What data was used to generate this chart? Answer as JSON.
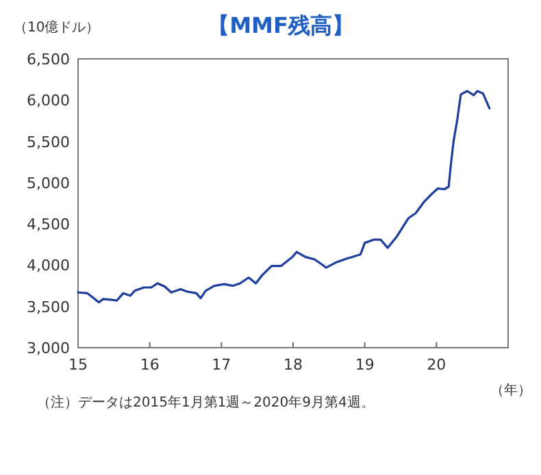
{
  "chart_data": {
    "type": "line",
    "title": "【MMF残高】",
    "ylabel": "（10億ドル）",
    "xlabel": "（年）",
    "x": [
      15.0,
      15.13,
      15.22,
      15.29,
      15.35,
      15.48,
      15.54,
      15.63,
      15.73,
      15.79,
      15.92,
      16.02,
      16.11,
      16.21,
      16.3,
      16.43,
      16.52,
      16.65,
      16.71,
      16.78,
      16.9,
      17.04,
      17.16,
      17.26,
      17.38,
      17.48,
      17.57,
      17.7,
      17.83,
      17.99,
      18.05,
      18.17,
      18.3,
      18.4,
      18.46,
      18.59,
      18.75,
      18.94,
      19.0,
      19.13,
      19.22,
      19.32,
      19.45,
      19.61,
      19.71,
      19.83,
      19.92,
      20.02,
      20.11,
      20.17,
      20.2,
      20.24,
      20.29,
      20.34,
      20.43,
      20.52,
      20.57,
      20.65,
      20.74
    ],
    "values": [
      3670,
      3660,
      3600,
      3550,
      3590,
      3580,
      3570,
      3660,
      3630,
      3690,
      3730,
      3730,
      3780,
      3740,
      3670,
      3710,
      3680,
      3660,
      3600,
      3690,
      3750,
      3770,
      3750,
      3780,
      3850,
      3780,
      3880,
      3990,
      3990,
      4100,
      4160,
      4100,
      4070,
      4010,
      3970,
      4030,
      4080,
      4130,
      4270,
      4310,
      4310,
      4210,
      4350,
      4570,
      4630,
      4770,
      4850,
      4930,
      4920,
      4950,
      5210,
      5510,
      5760,
      6070,
      6110,
      6060,
      6110,
      6080,
      5900
    ],
    "color": "#1c3d9c",
    "xlim": [
      15,
      21
    ],
    "xticks": [
      15,
      16,
      17,
      18,
      19,
      20
    ],
    "ylim": [
      3000,
      6500
    ],
    "yticks": [
      {
        "value": 3000,
        "label": "3,000"
      },
      {
        "value": 3500,
        "label": "3,500"
      },
      {
        "value": 4000,
        "label": "4,000"
      },
      {
        "value": 4500,
        "label": "4,500"
      },
      {
        "value": 5000,
        "label": "5,000"
      },
      {
        "value": 5500,
        "label": "5,500"
      },
      {
        "value": 6000,
        "label": "6,000"
      },
      {
        "value": 6500,
        "label": "6,500"
      }
    ],
    "annotations": [
      "（注）データは2015年1月第1週～2020年9月第4週。"
    ]
  }
}
